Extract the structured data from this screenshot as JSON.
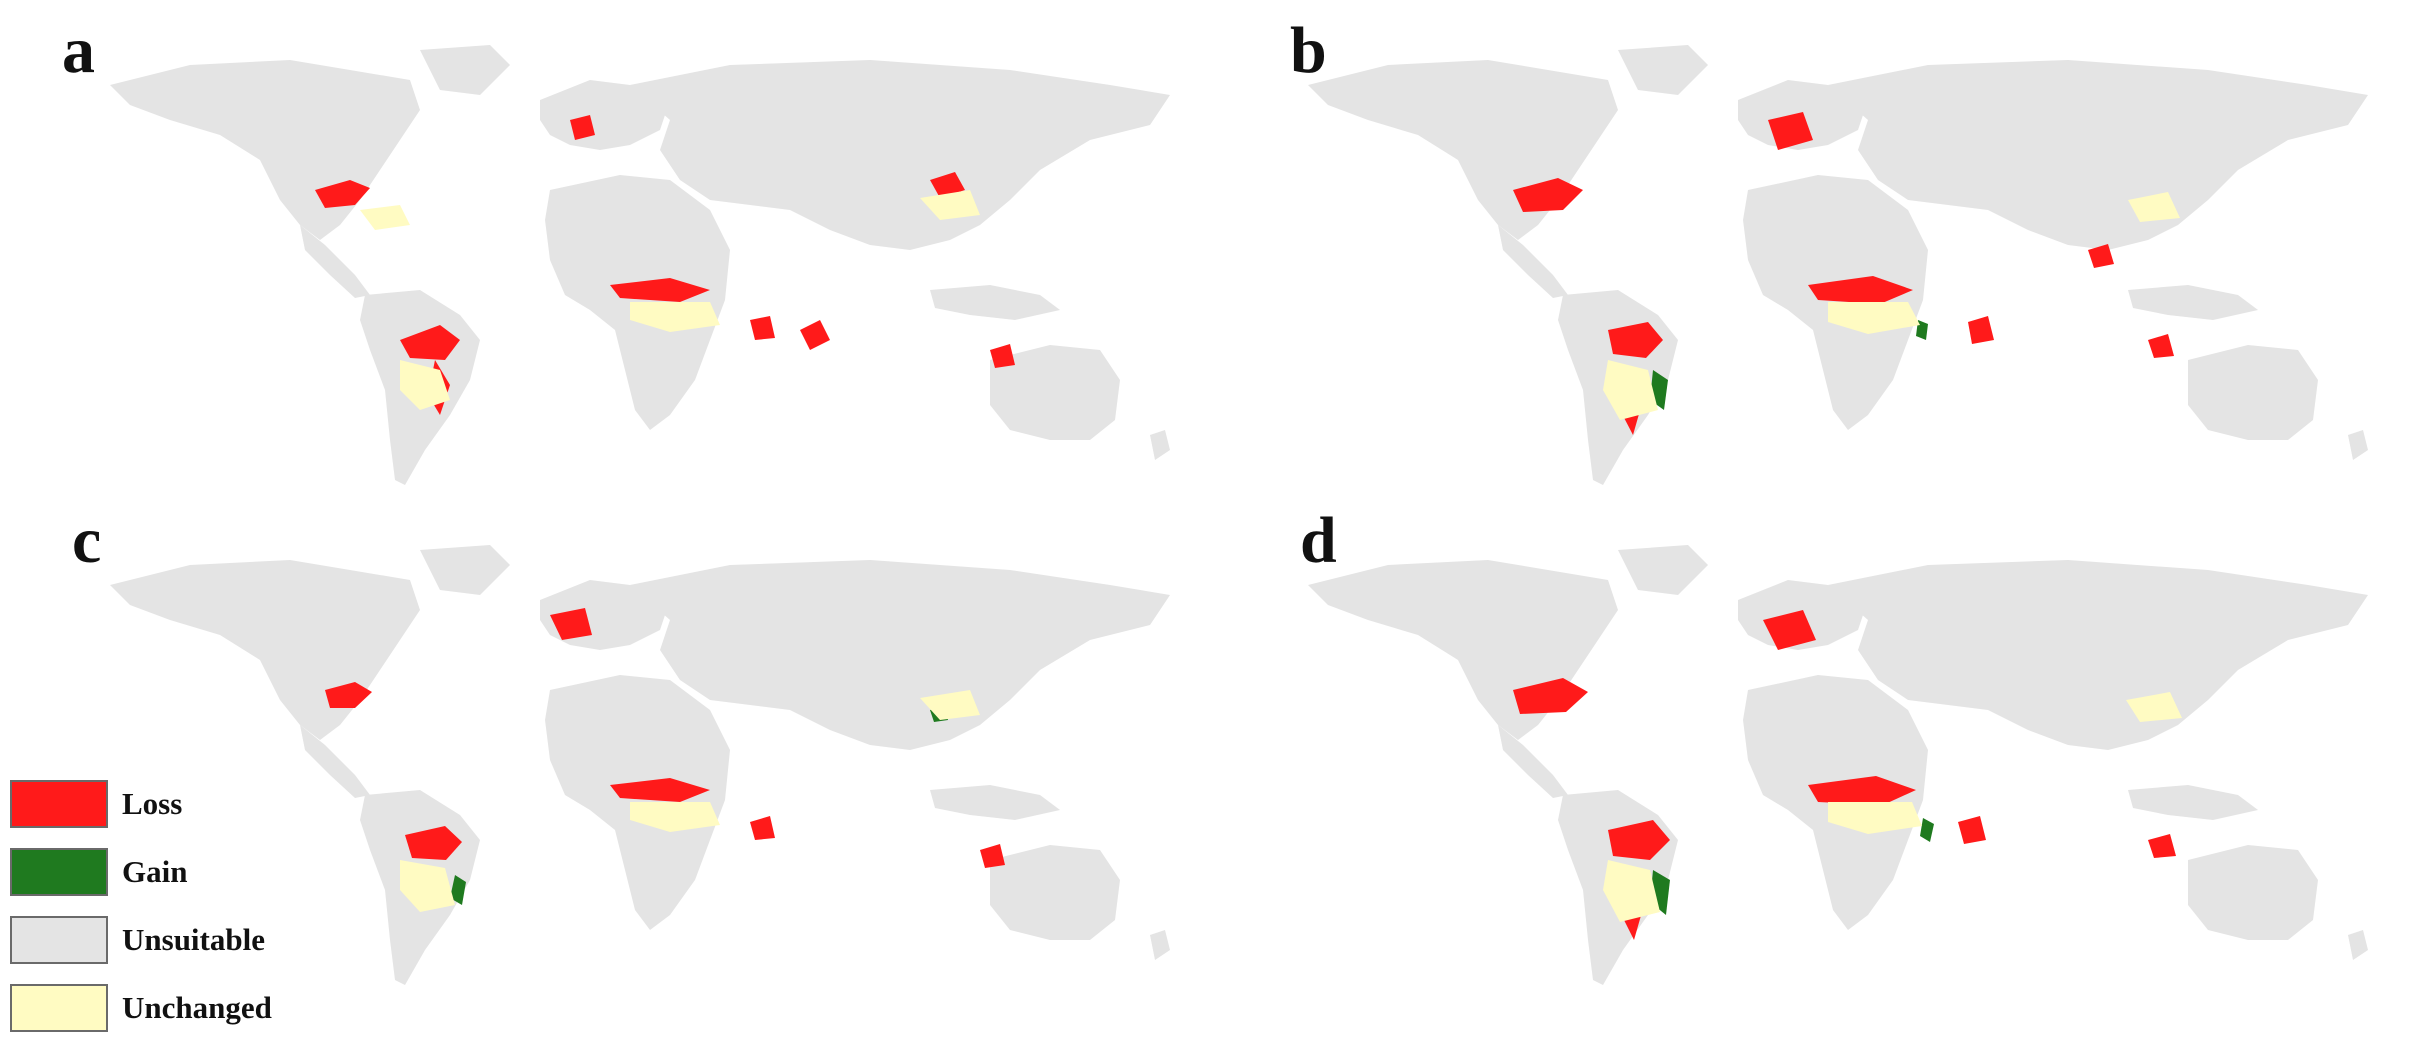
{
  "panels": [
    {
      "id": "a",
      "label": "a"
    },
    {
      "id": "b",
      "label": "b"
    },
    {
      "id": "c",
      "label": "c"
    },
    {
      "id": "d",
      "label": "d"
    }
  ],
  "legend": [
    {
      "label": "Loss",
      "color": "#ff1a1a"
    },
    {
      "label": "Gain",
      "color": "#1f7a1f"
    },
    {
      "label": "Unsuitable",
      "color": "#e4e4e4"
    },
    {
      "label": "Unchanged",
      "color": "#fffbc2"
    }
  ],
  "colors": {
    "land": "#e4e4e4",
    "loss": "#ff1a1a",
    "gain": "#1f7a1f",
    "unchanged": "#fffbc2"
  }
}
